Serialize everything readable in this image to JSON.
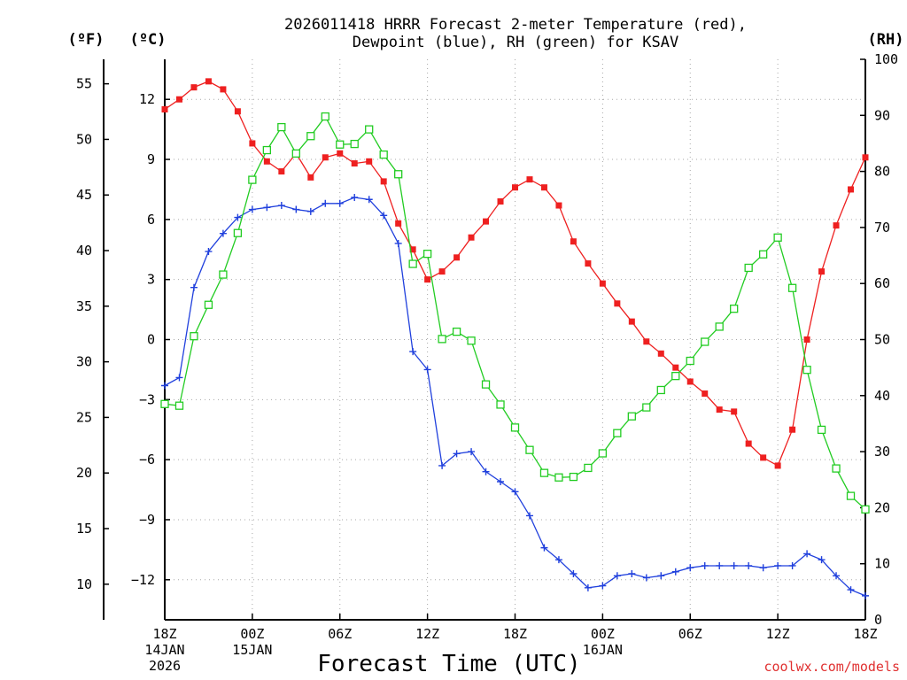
{
  "chart_data": {
    "type": "line",
    "title_line1": "2026011418 HRRR Forecast 2-meter Temperature (red),",
    "title_line2": "Dewpoint (blue), RH (green) for KSAV",
    "unit_f": "(ºF)",
    "unit_c": "(ºC)",
    "unit_rh": "(RH)",
    "xlabel": "Forecast Time (UTC)",
    "credit": "coolwx.com/models",
    "credit_color": "#e03030",
    "x_forecast_hours": [
      0,
      1,
      2,
      3,
      4,
      5,
      6,
      7,
      8,
      9,
      10,
      11,
      12,
      13,
      14,
      15,
      16,
      17,
      18,
      19,
      20,
      21,
      22,
      23,
      24,
      25,
      26,
      27,
      28,
      29,
      30,
      31,
      32,
      33,
      34,
      35,
      36,
      37,
      38,
      39,
      40,
      41,
      42,
      43,
      44,
      45,
      46,
      47,
      48
    ],
    "xlim_hours": [
      0,
      48
    ],
    "celsius_axis": {
      "ylim": [
        -14.0,
        14.0
      ],
      "ticks": [
        12,
        9,
        6,
        3,
        0,
        -3,
        -6,
        -9,
        -12
      ],
      "tick_labels": [
        "12",
        "9",
        "6",
        "3",
        "0",
        "−3",
        "−6",
        "−9",
        "−12"
      ]
    },
    "fahrenheit_axis": {
      "ticks": [
        55,
        50,
        45,
        40,
        35,
        30,
        25,
        20,
        15,
        10
      ],
      "tick_labels": [
        "55",
        "50",
        "45",
        "40",
        "35",
        "30",
        "25",
        "20",
        "15",
        "10"
      ]
    },
    "rh_axis": {
      "ylim": [
        0,
        100
      ],
      "ticks": [
        100,
        90,
        80,
        70,
        60,
        50,
        40,
        30,
        20,
        10,
        0
      ],
      "tick_labels": [
        "100",
        "90",
        "80",
        "70",
        "60",
        "50",
        "40",
        "30",
        "20",
        "10",
        "0"
      ]
    },
    "x_ticks": [
      {
        "hour": 0,
        "lines": [
          "18Z",
          "14JAN",
          "2026"
        ]
      },
      {
        "hour": 6,
        "lines": [
          "00Z",
          "15JAN"
        ]
      },
      {
        "hour": 12,
        "lines": [
          "06Z"
        ]
      },
      {
        "hour": 18,
        "lines": [
          "12Z"
        ]
      },
      {
        "hour": 24,
        "lines": [
          "18Z"
        ]
      },
      {
        "hour": 30,
        "lines": [
          "00Z",
          "16JAN"
        ]
      },
      {
        "hour": 36,
        "lines": [
          "06Z"
        ]
      },
      {
        "hour": 42,
        "lines": [
          "12Z"
        ]
      },
      {
        "hour": 48,
        "lines": [
          "18Z"
        ]
      }
    ],
    "grid": true,
    "series": [
      {
        "name": "Temperature",
        "unit": "C",
        "color": "#ee2020",
        "marker": "filled-square",
        "values": [
          11.5,
          12.0,
          12.6,
          12.9,
          12.5,
          11.4,
          9.8,
          8.9,
          8.4,
          9.3,
          8.1,
          9.1,
          9.3,
          8.8,
          8.9,
          7.9,
          5.8,
          4.5,
          3.0,
          3.4,
          4.1,
          5.1,
          5.9,
          6.9,
          7.6,
          8.0,
          7.6,
          6.7,
          4.9,
          3.8,
          2.8,
          1.8,
          0.9,
          -0.1,
          -0.7,
          -1.4,
          -2.1,
          -2.7,
          -3.5,
          -3.6,
          -5.2,
          -5.9,
          -6.3,
          -4.5,
          0.0,
          3.4,
          5.7,
          7.5,
          9.1
        ]
      },
      {
        "name": "Dewpoint",
        "unit": "C",
        "color": "#2040dd",
        "marker": "plus",
        "values": [
          -2.3,
          -1.9,
          2.6,
          4.4,
          5.3,
          6.1,
          6.5,
          6.6,
          6.7,
          6.5,
          6.4,
          6.8,
          6.8,
          7.1,
          7.0,
          6.2,
          4.8,
          -0.6,
          -1.5,
          -6.3,
          -5.7,
          -5.6,
          -6.6,
          -7.1,
          -7.6,
          -8.8,
          -10.4,
          -11.0,
          -11.7,
          -12.4,
          -12.3,
          -11.8,
          -11.7,
          -11.9,
          -11.8,
          -11.6,
          -11.4,
          -11.3,
          -11.3,
          -11.3,
          -11.3,
          -11.4,
          -11.3,
          -11.3,
          -10.7,
          -11.0,
          -11.8,
          -12.5,
          -12.8
        ]
      },
      {
        "name": "RH",
        "unit": "%",
        "color": "#22cc22",
        "marker": "open-square",
        "values": [
          38.5,
          38.2,
          50.6,
          56.2,
          61.6,
          69.0,
          78.5,
          83.8,
          87.9,
          83.2,
          86.3,
          89.8,
          84.8,
          84.9,
          87.5,
          83.0,
          79.5,
          63.5,
          65.3,
          50.1,
          51.4,
          49.8,
          42.0,
          38.4,
          34.3,
          30.3,
          26.2,
          25.4,
          25.5,
          27.1,
          29.7,
          33.3,
          36.3,
          37.9,
          41.0,
          43.5,
          46.2,
          49.6,
          52.3,
          55.5,
          62.8,
          65.2,
          68.2,
          59.2,
          44.6,
          33.9,
          27.0,
          22.1,
          19.7
        ]
      }
    ]
  }
}
